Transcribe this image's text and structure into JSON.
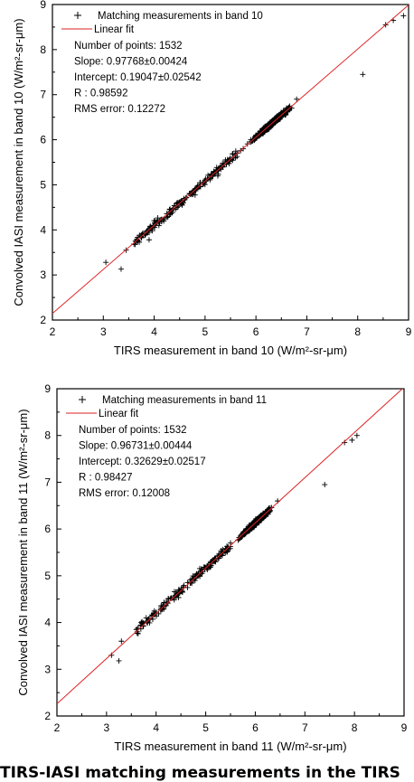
{
  "caption": "TIRS-IASI matching measurements in the TIRS",
  "chart_data": [
    {
      "type": "scatter",
      "xlabel": "TIRS measurement in band 10 (W/m²-sr-μm)",
      "ylabel": "Convolved IASI measurement in band 10 (W/m²-sr-μm)",
      "xlim": [
        2,
        9
      ],
      "ylim": [
        2,
        9
      ],
      "xticks": [
        "2",
        "3",
        "4",
        "5",
        "6",
        "7",
        "8",
        "9"
      ],
      "yticks": [
        "2",
        "3",
        "4",
        "5",
        "6",
        "7",
        "8",
        "9"
      ],
      "grid": false,
      "legend": {
        "position": "top-left",
        "entries": [
          {
            "label": "Matching measurements in band 10",
            "marker": "+",
            "color": "#000000"
          },
          {
            "label": "Linear fit",
            "marker": "line",
            "color": "#dd2222"
          }
        ]
      },
      "stats": [
        "Number of points: 1532",
        "Slope: 0.97768±0.00424",
        "Intercept: 0.19047±0.02542",
        "R : 0.98592",
        "RMS error: 0.12272"
      ],
      "fit": {
        "slope": 0.97768,
        "intercept": 0.19047
      },
      "points_count": 1532,
      "points_sample": [
        [
          3.05,
          3.28
        ],
        [
          3.35,
          3.13
        ],
        [
          3.45,
          3.55
        ],
        [
          3.9,
          3.78
        ],
        [
          3.95,
          4.02
        ],
        [
          4.1,
          4.2
        ],
        [
          4.2,
          4.25
        ],
        [
          4.3,
          4.45
        ],
        [
          4.45,
          4.6
        ],
        [
          4.55,
          4.55
        ],
        [
          4.7,
          4.8
        ],
        [
          4.8,
          4.9
        ],
        [
          4.9,
          5.05
        ],
        [
          5.1,
          5.15
        ],
        [
          5.25,
          5.2
        ],
        [
          5.4,
          5.55
        ],
        [
          5.6,
          5.6
        ],
        [
          5.75,
          5.8
        ],
        [
          5.9,
          6.0
        ],
        [
          6.0,
          6.1
        ],
        [
          6.2,
          6.3
        ],
        [
          6.4,
          6.5
        ],
        [
          6.6,
          6.7
        ],
        [
          6.8,
          6.9
        ],
        [
          8.1,
          7.45
        ],
        [
          8.55,
          8.55
        ],
        [
          8.7,
          8.65
        ],
        [
          8.9,
          8.75
        ]
      ],
      "main_cluster": {
        "x_range": [
          5.7,
          6.9
        ],
        "y_range": [
          5.7,
          7.0
        ]
      }
    },
    {
      "type": "scatter",
      "xlabel": "TIRS measurement in band 11 (W/m²-sr-μm)",
      "ylabel": "Convolved IASI measurement in band 11 (W/m²-sr-μm)",
      "xlim": [
        2,
        9
      ],
      "ylim": [
        2,
        9
      ],
      "xticks": [
        "2",
        "3",
        "4",
        "5",
        "6",
        "7",
        "8",
        "9"
      ],
      "yticks": [
        "2",
        "3",
        "4",
        "5",
        "6",
        "7",
        "8",
        "9"
      ],
      "grid": false,
      "legend": {
        "position": "top-left",
        "entries": [
          {
            "label": "Matching measurements in band 11",
            "marker": "+",
            "color": "#000000"
          },
          {
            "label": "Linear fit",
            "marker": "line",
            "color": "#dd2222"
          }
        ]
      },
      "stats": [
        "Number of points: 1532",
        "Slope: 0.96731±0.00444",
        "Intercept: 0.32629±0.02517",
        "R : 0.98427",
        "RMS error: 0.12008"
      ],
      "fit": {
        "slope": 0.96731,
        "intercept": 0.32629
      },
      "points_count": 1532,
      "points_sample": [
        [
          3.1,
          3.3
        ],
        [
          3.25,
          3.18
        ],
        [
          3.3,
          3.6
        ],
        [
          3.6,
          3.85
        ],
        [
          3.7,
          4.0
        ],
        [
          3.8,
          4.1
        ],
        [
          3.95,
          4.2
        ],
        [
          4.1,
          4.35
        ],
        [
          4.25,
          4.5
        ],
        [
          4.4,
          4.65
        ],
        [
          4.55,
          4.75
        ],
        [
          4.7,
          4.85
        ],
        [
          4.85,
          5.0
        ],
        [
          5.05,
          5.2
        ],
        [
          5.2,
          5.3
        ],
        [
          5.35,
          5.5
        ],
        [
          5.5,
          5.7
        ],
        [
          5.7,
          5.85
        ],
        [
          5.9,
          6.0
        ],
        [
          6.1,
          6.2
        ],
        [
          6.3,
          6.45
        ],
        [
          6.45,
          6.6
        ],
        [
          7.4,
          6.95
        ],
        [
          7.8,
          7.85
        ],
        [
          7.95,
          7.9
        ],
        [
          8.05,
          8.0
        ]
      ],
      "main_cluster": {
        "x_range": [
          5.5,
          6.5
        ],
        "y_range": [
          5.5,
          6.65
        ]
      }
    }
  ]
}
